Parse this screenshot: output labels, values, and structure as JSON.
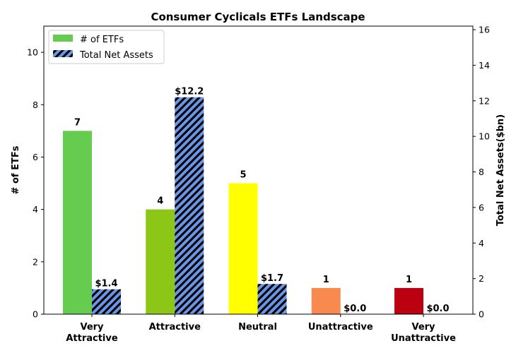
{
  "chart_data": {
    "type": "bar",
    "title": "Consumer Cyclicals ETFs Landscape",
    "categories": [
      [
        "Very",
        "Attractive"
      ],
      [
        "Attractive"
      ],
      [
        "Neutral"
      ],
      [
        "Unattractive"
      ],
      [
        "Very",
        "Unattractive"
      ]
    ],
    "left_axis": {
      "label": "# of ETFs",
      "ylim": [
        0,
        11
      ],
      "ticks": [
        0,
        2,
        4,
        6,
        8,
        10
      ]
    },
    "right_axis": {
      "label": "Total Net Assets($bn)",
      "ylim": [
        0,
        16.2
      ],
      "ticks": [
        0,
        2,
        4,
        6,
        8,
        10,
        12,
        14,
        16
      ]
    },
    "series": [
      {
        "name": "# of ETFs",
        "axis": "left",
        "values": [
          7,
          4,
          5,
          1,
          1
        ],
        "labels": [
          "7",
          "4",
          "5",
          "1",
          "1"
        ],
        "colors": [
          "#66cc4f",
          "#8cc717",
          "#ffff00",
          "#f88a50",
          "#bb0012"
        ],
        "legend_color": "#66cc4f"
      },
      {
        "name": "Total Net Assets",
        "axis": "right",
        "values": [
          1.4,
          12.2,
          1.7,
          0.0,
          0.0
        ],
        "labels": [
          "$1.4",
          "$12.2",
          "$1.7",
          "$0.0",
          "$0.0"
        ],
        "color": "#6a95e6",
        "hatch": "diagonal"
      }
    ],
    "legend_position": "top-left",
    "grid": false
  }
}
